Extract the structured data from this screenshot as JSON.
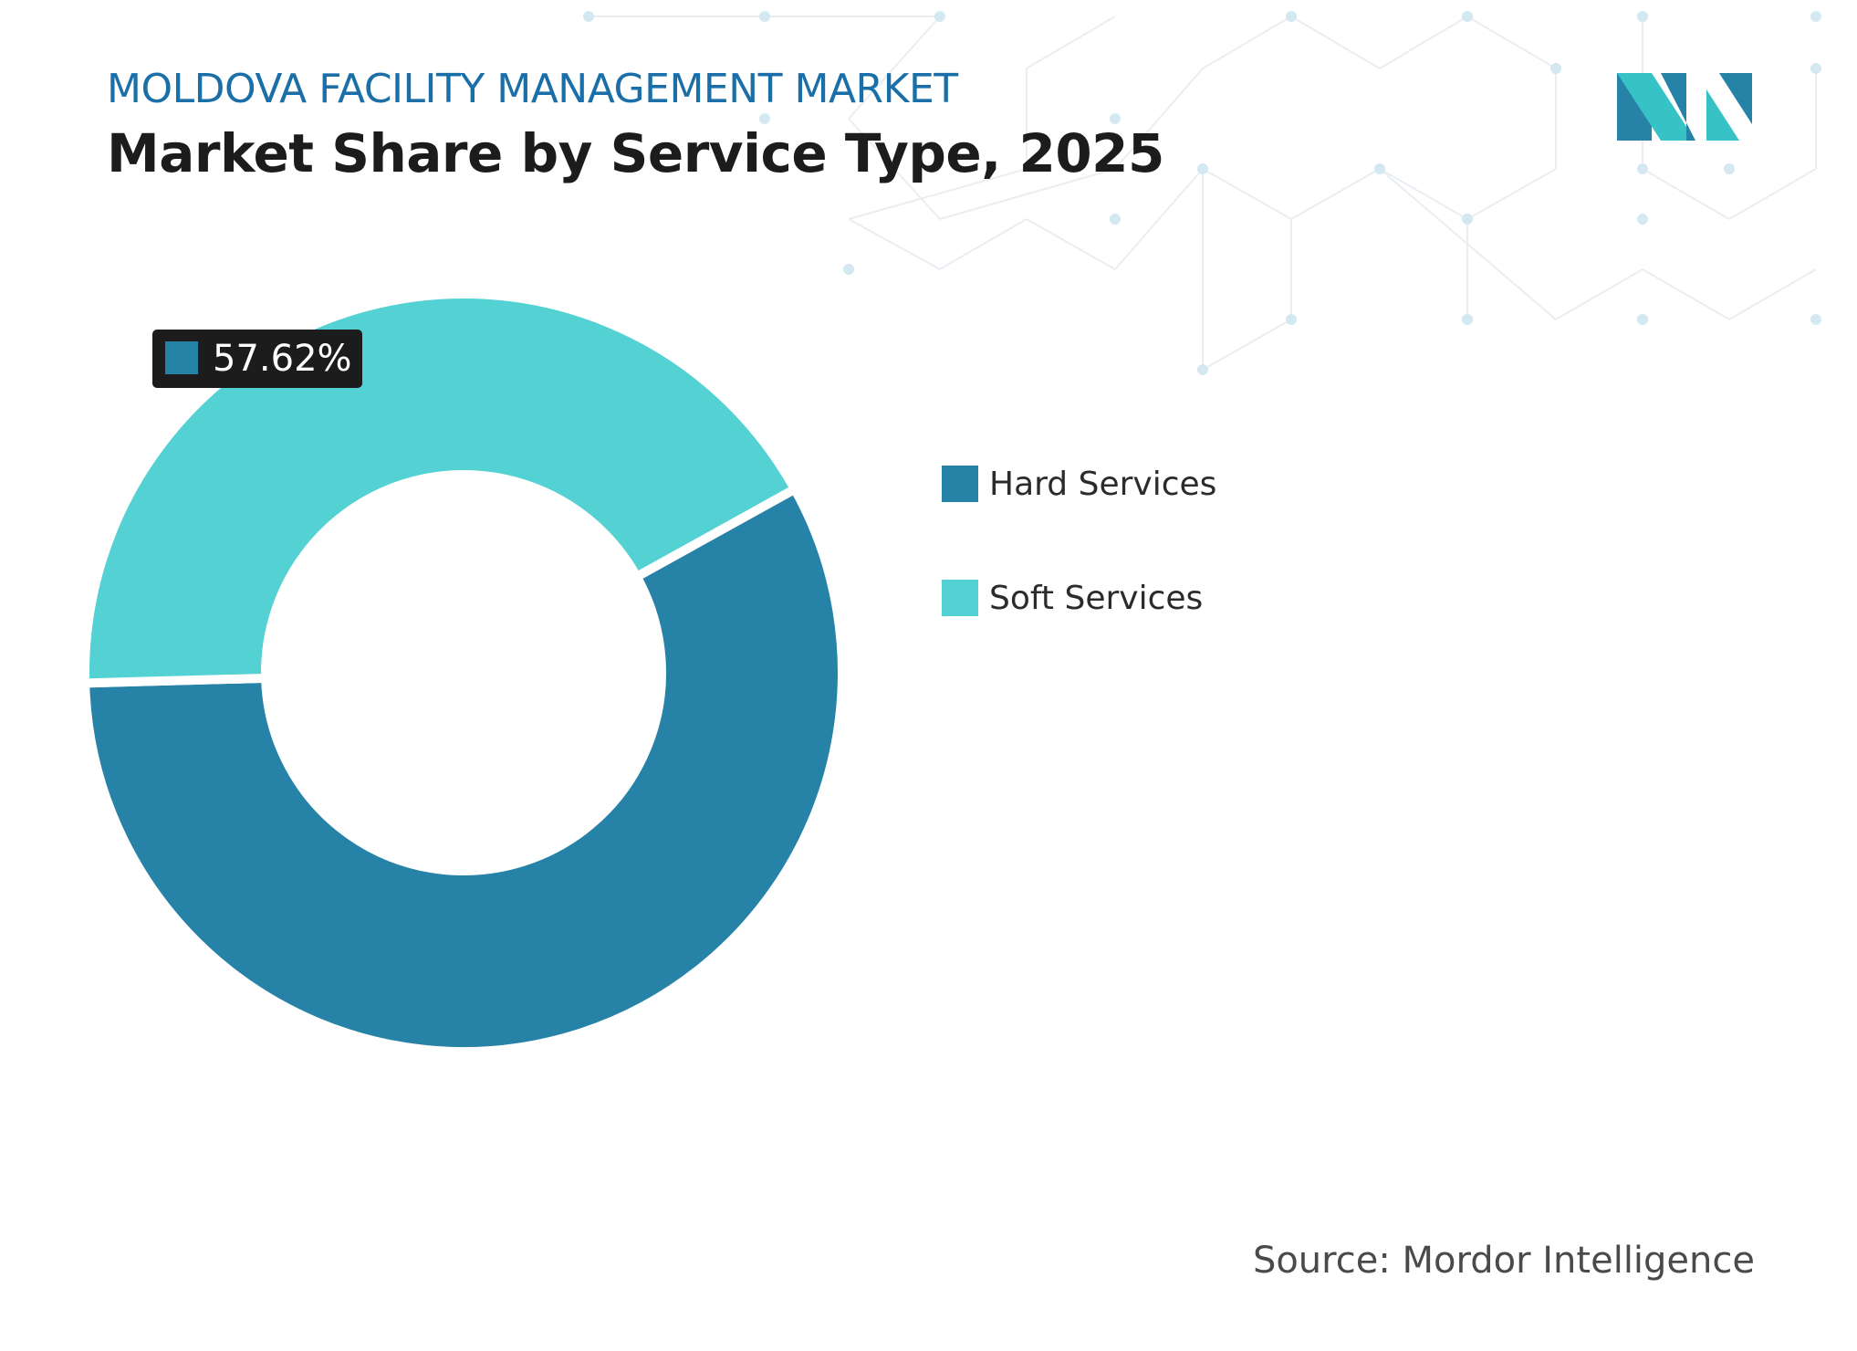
{
  "header": {
    "supertitle": "MOLDOVA FACILITY MANAGEMENT MARKET",
    "title": "Market Share by Service Type, 2025"
  },
  "colors": {
    "hard": "#2782a8",
    "soft": "#53d1d3",
    "supertitle": "#1a6fa8",
    "label_bg": "#1c1c1c",
    "logo_dark": "#2782a8",
    "logo_light": "#37c3c6"
  },
  "chart_data": {
    "type": "pie",
    "style": "donut",
    "title": "Market Share by Service Type, 2025",
    "categories": [
      "Hard Services",
      "Soft Services"
    ],
    "values": [
      57.62,
      42.38
    ],
    "unit": "%",
    "data_labels": [
      {
        "category": "Hard Services",
        "text": "57.62%"
      }
    ],
    "legend": {
      "placement": "right"
    }
  },
  "legend": {
    "items": [
      {
        "label": "Hard Services",
        "color": "#2782a8"
      },
      {
        "label": "Soft Services",
        "color": "#53d1d3"
      }
    ]
  },
  "footer": {
    "source": "Source: Mordor Intelligence"
  },
  "logo": {
    "icon": "mordor-intelligence-logo-icon"
  }
}
